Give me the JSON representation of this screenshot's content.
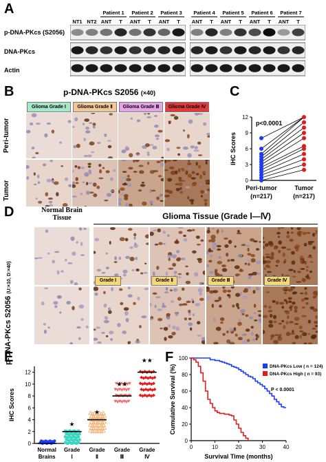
{
  "panelA": {
    "label": "A",
    "rows": [
      "p-DNA-PKcs (S2056)",
      "DNA-PKcs",
      "Actin"
    ],
    "lanes_left": [
      "NT1",
      "NT2",
      "ANT",
      "T",
      "ANT",
      "T",
      "ANT",
      "T"
    ],
    "lanes_right": [
      "ANT",
      "T",
      "ANT",
      "T",
      "ANT",
      "T",
      "ANT",
      "T"
    ],
    "patients": [
      "Patient 1",
      "Patient 2",
      "Patient 3",
      "Patient 4",
      "Patient 5",
      "Patient 6",
      "Patient 7"
    ]
  },
  "panelB": {
    "label": "B",
    "title": "p-DNA-PKcs S2056",
    "magnification": "(×40)",
    "grades": [
      "Glioma Grade Ⅰ",
      "Glioma Grade Ⅱ",
      "Glioma Grade Ⅲ",
      "Glioma Grade Ⅳ"
    ],
    "grade_colors": [
      "#a8e8c8",
      "#f2c796",
      "#e6a4e6",
      "#e03a3a"
    ],
    "rows": [
      "Peri-tumor",
      "Tumor"
    ]
  },
  "panelC": {
    "label": "C",
    "chart_data": {
      "type": "scatter",
      "ylabel": "IHC Scores",
      "ylim": [
        0,
        12
      ],
      "yticks": [
        "0",
        "3",
        "6",
        "9",
        "12"
      ],
      "categories": [
        "Peri-tumor",
        "Tumor"
      ],
      "category_n": [
        "(n=217)",
        "(n=217)"
      ],
      "annotation": "p<0.0001",
      "series": [
        {
          "values": [
            0,
            0.5,
            1,
            1.5,
            2,
            2.5,
            3,
            3.5,
            4,
            4.5,
            5,
            6,
            8
          ]
        },
        {
          "values": [
            2,
            3,
            4,
            5,
            6,
            6.5,
            8,
            9,
            10,
            11,
            12
          ]
        }
      ],
      "colors": [
        "#1a3aff",
        "#e41a1a"
      ]
    }
  },
  "panelD": {
    "label": "D",
    "normal_title": "Normal Brain Tissue",
    "glioma_title": "Glioma Tissue (Grade Ⅰ—Ⅳ)",
    "side_label": "p-DNA-PKcs S2056",
    "side_label_small": "(U:×10, D:×40)",
    "grade_tags": [
      "Grade Ⅰ",
      "Grade Ⅱ",
      "Grade Ⅲ",
      "Grade Ⅳ"
    ],
    "tag_color": "#f5d77a"
  },
  "panelE": {
    "label": "E",
    "chart_data": {
      "type": "scatter",
      "ylabel": "IHC Scores",
      "ylim": [
        0,
        13
      ],
      "yticks": [
        "0",
        "2",
        "4",
        "6",
        "8",
        "10",
        "12"
      ],
      "categories": [
        "Normal Brains",
        "Grade Ⅰ",
        "Grade Ⅱ",
        "Grade Ⅲ",
        "Grade Ⅳ"
      ],
      "means": [
        0,
        2,
        4,
        8,
        12
      ],
      "significance": [
        "",
        "★",
        "★",
        "★★",
        "★★"
      ],
      "colors": [
        "#1a3aff",
        "#3cd6c0",
        "#f2b070",
        "#f07070",
        "#e41a1a"
      ]
    }
  },
  "panelF": {
    "label": "F",
    "chart_data": {
      "type": "line",
      "xlabel": "Survival Time (months)",
      "ylabel": "Cumulative Survival (%)",
      "xlim": [
        0,
        40
      ],
      "ylim": [
        0,
        100
      ],
      "xticks": [
        "0",
        "10",
        "20",
        "30",
        "40"
      ],
      "yticks": [
        "0",
        "20",
        "40",
        "60",
        "80",
        "100"
      ],
      "legend": [
        "DNA-PKcs Low ( n = 124)",
        "DNA-PKcs High ( n = 93)"
      ],
      "annotation": "P < 0.0001",
      "series": [
        {
          "x": [
            0,
            6,
            8,
            10,
            12,
            13,
            14,
            15,
            16,
            17,
            18,
            19,
            20,
            21,
            22,
            23,
            24,
            25,
            26,
            27,
            28,
            29,
            30,
            31,
            32,
            33,
            34,
            35,
            36,
            37,
            38,
            39,
            40
          ],
          "y": [
            100,
            100,
            98,
            97,
            96,
            95,
            94,
            93,
            92,
            90,
            89,
            88,
            86,
            84,
            82,
            80,
            78,
            77,
            75,
            72,
            70,
            68,
            66,
            63,
            60,
            57,
            54,
            50,
            47,
            44,
            41,
            40,
            40
          ]
        },
        {
          "x": [
            0,
            1,
            2,
            3,
            4,
            5,
            6,
            7,
            8,
            9,
            10,
            11,
            12,
            13,
            14,
            15,
            16,
            17,
            18,
            19,
            20,
            21,
            22,
            23,
            24
          ],
          "y": [
            100,
            98,
            95,
            90,
            82,
            72,
            60,
            50,
            45,
            40,
            36,
            34,
            33,
            33,
            32,
            32,
            31,
            30,
            25,
            20,
            15,
            10,
            6,
            3,
            0
          ]
        }
      ],
      "colors": [
        "#1a3aff",
        "#e41a1a"
      ]
    }
  }
}
